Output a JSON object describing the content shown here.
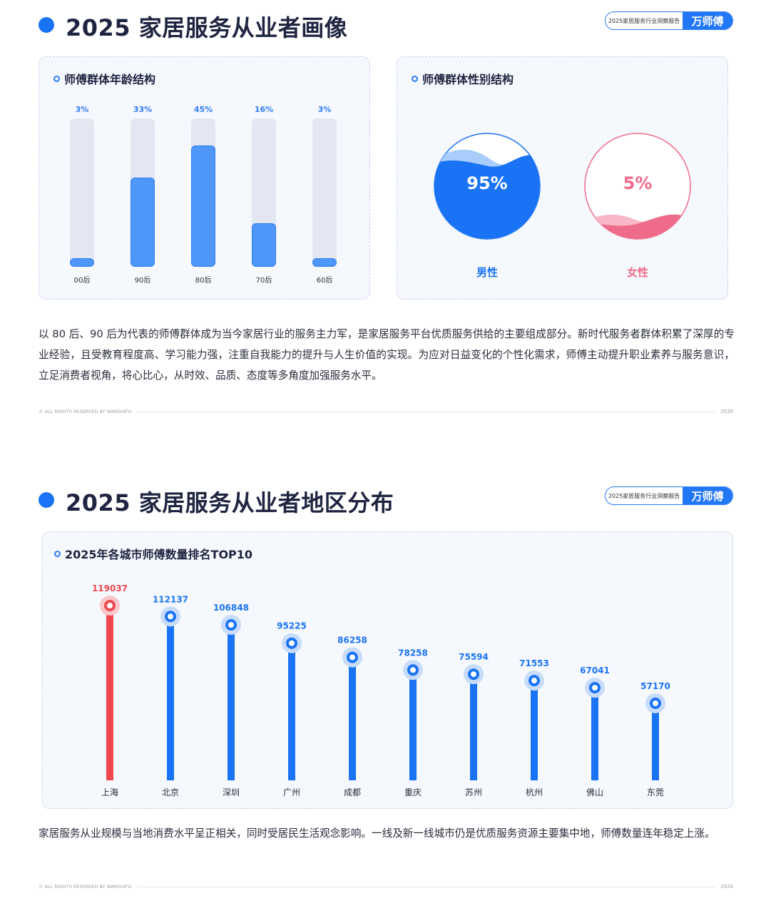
{
  "section1": {
    "title": "2025 家居服务从业者画像",
    "brand_left": "2025家居服务行业洞察报告",
    "brand_right": "万师傅",
    "age_card_title": "师傅群体年龄结构",
    "gender_card_title": "师傅群体性别结构",
    "paragraph": "以 80 后、90 后为代表的师傅群体成为当今家居行业的服务主力军，是家居服务平台优质服务供给的主要组成部分。新时代服务者群体积累了深厚的专业经验，且受教育程度高、学习能力强，注重自我能力的提升与人生价值的实现。为应对日益变化的个性化需求，师傅主动提升职业素养与服务意识，立足消费者视角，将心比心，从时效、品质、态度等多角度加强服务水平。",
    "footer_left": "© ALL RIGHTS RESERVED BY WANSHIFU",
    "footer_right": "2026"
  },
  "section2": {
    "title": "2025 家居服务从业者地区分布",
    "brand_left": "2025家居服务行业洞察报告",
    "brand_right": "万师傅",
    "card_title": "2025年各城市师傅数量排名TOP10",
    "paragraph": "家居服务从业规模与当地消费水平呈正相关，同时受居民生活观念影响。一线及新一线城市仍是优质服务资源主要集中地，师傅数量连年稳定上涨。",
    "footer_left": "© ALL RIGHTS RESERVED BY WANSHIFU",
    "footer_right": "2026"
  },
  "colors": {
    "primary": "#1a73f5",
    "highlight": "#f0484e",
    "female": "#ef6b8a"
  },
  "chart_data": [
    {
      "type": "bar",
      "title": "师傅群体年龄结构",
      "categories": [
        "00后",
        "90后",
        "80后",
        "70后",
        "60后"
      ],
      "values": [
        3,
        33,
        45,
        16,
        3
      ],
      "value_labels": [
        "3%",
        "33%",
        "45%",
        "16%",
        "3%"
      ],
      "unit": "%",
      "ylim": [
        0,
        50
      ],
      "grid": false
    },
    {
      "type": "pie",
      "title": "师傅群体性别结构",
      "categories": [
        "男性",
        "女性"
      ],
      "values": [
        95,
        5
      ],
      "value_labels": [
        "95%",
        "5%"
      ],
      "unit": "%"
    },
    {
      "type": "bar",
      "title": "2025年各城市师傅数量排名TOP10",
      "categories": [
        "上海",
        "北京",
        "深圳",
        "广州",
        "成都",
        "重庆",
        "苏州",
        "杭州",
        "佛山",
        "东莞"
      ],
      "values": [
        119037,
        112137,
        106848,
        95225,
        86258,
        78258,
        75594,
        71553,
        67041,
        57170
      ],
      "highlight_index": 0,
      "grid": false
    }
  ]
}
